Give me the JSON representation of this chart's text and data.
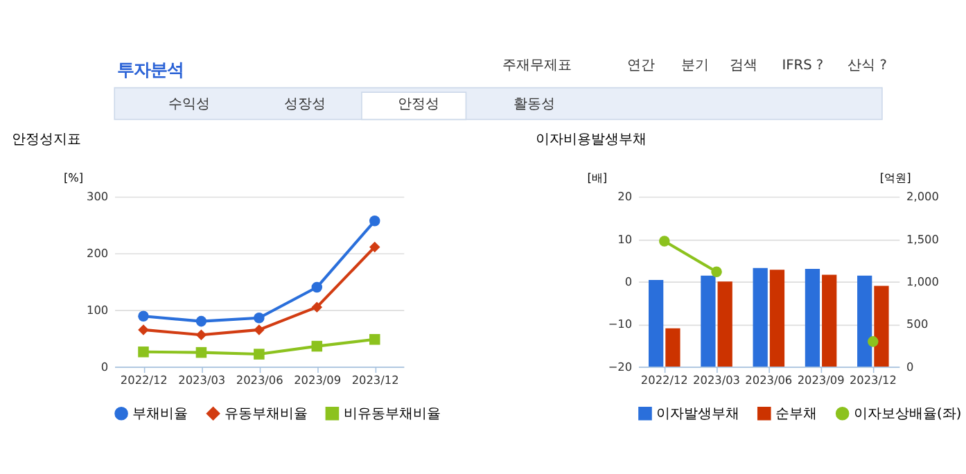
{
  "chart_data": [
    {
      "type": "other",
      "title": "투자분석",
      "annotations": [
        "주재무제표",
        "연간",
        "분기",
        "검색",
        "IFRS ?",
        "산식 ?",
        "수익성",
        "성장성",
        "안정성",
        "활동성"
      ]
    },
    {
      "type": "line",
      "title": "안정성지표",
      "ylabel": "[%]",
      "categories": [
        "2022/12",
        "2023/03",
        "2023/06",
        "2023/09",
        "2023/12"
      ],
      "ylim": [
        0,
        300
      ],
      "yticks": [
        0,
        100,
        200,
        300
      ],
      "grid": "y",
      "legend": "bottom",
      "line_style": "solid",
      "series": [
        {
          "name": "부채비율",
          "color": "#2a6fdb",
          "marker": "circle",
          "values": [
            89,
            80,
            86,
            140,
            257
          ]
        },
        {
          "name": "유동부채비율",
          "color": "#d23c12",
          "marker": "diamond",
          "values": [
            65,
            56,
            65,
            105,
            211
          ]
        },
        {
          "name": "비유동부채비율",
          "color": "#8cc21e",
          "marker": "square",
          "values": [
            26,
            25,
            22,
            36,
            48
          ]
        }
      ]
    },
    {
      "type": "bar",
      "title": "이자비용발생부채",
      "ylabel": "[배]",
      "y2label": "[억원]",
      "categories": [
        "2022/12",
        "2023/03",
        "2023/06",
        "2023/09",
        "2023/12"
      ],
      "ylim": [
        -20,
        20
      ],
      "yticks": [
        -20,
        -10,
        0,
        10,
        20
      ],
      "y2lim": [
        0,
        2000
      ],
      "y2ticks": [
        0,
        500,
        {
          "value": 1000,
          "label": "1,000"
        },
        {
          "value": 1500,
          "label": "1,500"
        },
        {
          "value": 2000,
          "label": "2,000"
        }
      ],
      "grid": "y",
      "legend": "bottom",
      "series": [
        {
          "name": "이자발생부채",
          "color": "#2a6fdb",
          "axis": "y2",
          "values": [
            1020,
            1070,
            1160,
            1150,
            1070
          ]
        },
        {
          "name": "순부채",
          "color": "#cc3300",
          "axis": "y2",
          "values": [
            450,
            1000,
            1140,
            1080,
            950
          ]
        },
        {
          "name": "이자보상배율(좌)",
          "type": "line",
          "color": "#8cc21e",
          "marker": "circle",
          "values": [
            9.5,
            2.3,
            null,
            null,
            -14.1
          ]
        }
      ]
    }
  ]
}
